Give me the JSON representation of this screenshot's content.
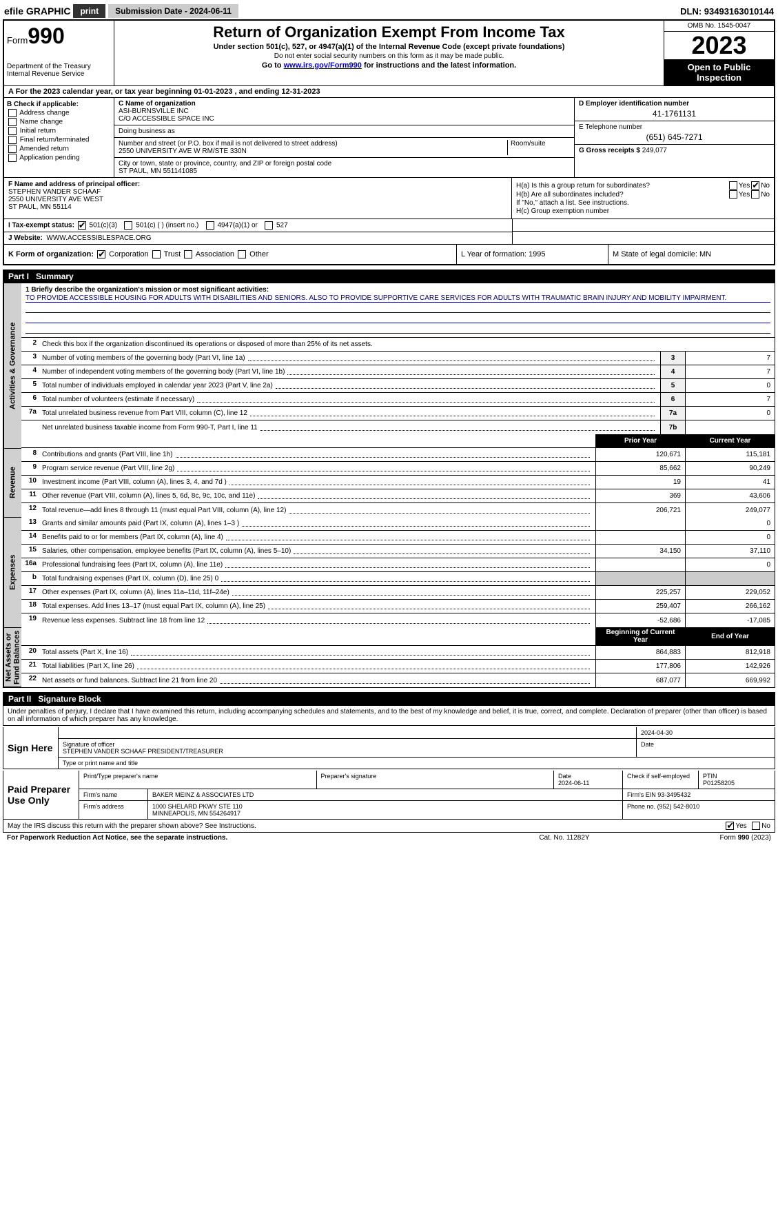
{
  "meta": {
    "efile": "efile GRAPHIC",
    "print": "print",
    "submission_label": "Submission Date - 2024-06-11",
    "dln": "DLN: 93493163010144"
  },
  "header": {
    "form_small": "Form",
    "form_big": "990",
    "dept": "Department of the Treasury\nInternal Revenue Service",
    "title": "Return of Organization Exempt From Income Tax",
    "sub1": "Under section 501(c), 527, or 4947(a)(1) of the Internal Revenue Code (except private foundations)",
    "sub2": "Do not enter social security numbers on this form as it may be made public.",
    "sub3_pre": "Go to ",
    "sub3_link": "www.irs.gov/Form990",
    "sub3_post": " for instructions and the latest information.",
    "omb": "OMB No. 1545-0047",
    "year": "2023",
    "inspect": "Open to Public Inspection"
  },
  "line_a": "A For the 2023 calendar year, or tax year beginning 01-01-2023   , and ending 12-31-2023",
  "col_b": {
    "title": "B Check if applicable:",
    "items": [
      "Address change",
      "Name change",
      "Initial return",
      "Final return/terminated",
      "Amended return",
      "Application pending"
    ]
  },
  "col_c": {
    "name_label": "C Name of organization",
    "name1": "ASI-BURNSVILLE INC",
    "name2": "C/O ACCESSIBLE SPACE INC",
    "dba_label": "Doing business as",
    "addr_label": "Number and street (or P.O. box if mail is not delivered to street address)",
    "addr": "2550 UNIVERSITY AVE W RM/STE 330N",
    "suite_label": "Room/suite",
    "city_label": "City or town, state or province, country, and ZIP or foreign postal code",
    "city": "ST PAUL, MN  551141085"
  },
  "col_de": {
    "d_label": "D Employer identification number",
    "d_val": "41-1761131",
    "e_label": "E Telephone number",
    "e_val": "(651) 645-7271",
    "g_label": "G Gross receipts $",
    "g_val": "249,077"
  },
  "col_f": {
    "label": "F Name and address of principal officer:",
    "l1": "STEPHEN VANDER SCHAAF",
    "l2": "2550 UNIVERSITY AVE WEST",
    "l3": "ST PAUL, MN  55114"
  },
  "col_h": {
    "ha": "H(a)  Is this a group return for subordinates?",
    "hb": "H(b)  Are all subordinates included?",
    "hb_note": "If \"No,\" attach a list. See instructions.",
    "hc": "H(c)  Group exemption number"
  },
  "row_i": {
    "label": "I   Tax-exempt status:",
    "o1": "501(c)(3)",
    "o2": "501(c) (  ) (insert no.)",
    "o3": "4947(a)(1) or",
    "o4": "527"
  },
  "row_j": {
    "label": "J   Website:",
    "val": "WWW.ACCESSIBLESPACE.ORG"
  },
  "row_k": "K Form of organization:",
  "row_k_opts": [
    "Corporation",
    "Trust",
    "Association",
    "Other"
  ],
  "row_l": "L Year of formation: 1995",
  "row_m": "M State of legal domicile: MN",
  "part1": {
    "name": "Part I",
    "title": "Summary"
  },
  "mission": {
    "label": "1   Briefly describe the organization's mission or most significant activities:",
    "text": "TO PROVIDE ACCESSIBLE HOUSING FOR ADULTS WITH DISABILITIES AND SENIORS. ALSO TO PROVIDE SUPPORTIVE CARE SERVICES FOR ADULTS WITH TRAUMATIC BRAIN INJURY AND MOBILITY IMPAIRMENT."
  },
  "line2": "Check this box      if the organization discontinued its operations or disposed of more than 25% of its net assets.",
  "gov_rows": [
    {
      "n": "3",
      "d": "Number of voting members of the governing body (Part VI, line 1a)",
      "k": "3",
      "v": "7"
    },
    {
      "n": "4",
      "d": "Number of independent voting members of the governing body (Part VI, line 1b)",
      "k": "4",
      "v": "7"
    },
    {
      "n": "5",
      "d": "Total number of individuals employed in calendar year 2023 (Part V, line 2a)",
      "k": "5",
      "v": "0"
    },
    {
      "n": "6",
      "d": "Total number of volunteers (estimate if necessary)",
      "k": "6",
      "v": "7"
    },
    {
      "n": "7a",
      "d": "Total unrelated business revenue from Part VIII, column (C), line 12",
      "k": "7a",
      "v": "0"
    },
    {
      "n": "",
      "d": "Net unrelated business taxable income from Form 990-T, Part I, line 11",
      "k": "7b",
      "v": ""
    }
  ],
  "col_headers": {
    "prior": "Prior Year",
    "current": "Current Year"
  },
  "rev_rows": [
    {
      "n": "8",
      "d": "Contributions and grants (Part VIII, line 1h)",
      "p": "120,671",
      "c": "115,181"
    },
    {
      "n": "9",
      "d": "Program service revenue (Part VIII, line 2g)",
      "p": "85,662",
      "c": "90,249"
    },
    {
      "n": "10",
      "d": "Investment income (Part VIII, column (A), lines 3, 4, and 7d )",
      "p": "19",
      "c": "41"
    },
    {
      "n": "11",
      "d": "Other revenue (Part VIII, column (A), lines 5, 6d, 8c, 9c, 10c, and 11e)",
      "p": "369",
      "c": "43,606"
    },
    {
      "n": "12",
      "d": "Total revenue—add lines 8 through 11 (must equal Part VIII, column (A), line 12)",
      "p": "206,721",
      "c": "249,077"
    }
  ],
  "exp_rows": [
    {
      "n": "13",
      "d": "Grants and similar amounts paid (Part IX, column (A), lines 1–3 )",
      "p": "",
      "c": "0"
    },
    {
      "n": "14",
      "d": "Benefits paid to or for members (Part IX, column (A), line 4)",
      "p": "",
      "c": "0"
    },
    {
      "n": "15",
      "d": "Salaries, other compensation, employee benefits (Part IX, column (A), lines 5–10)",
      "p": "34,150",
      "c": "37,110"
    },
    {
      "n": "16a",
      "d": "Professional fundraising fees (Part IX, column (A), line 11e)",
      "p": "",
      "c": "0"
    },
    {
      "n": "b",
      "d": "Total fundraising expenses (Part IX, column (D), line 25) 0",
      "p": "GRAY",
      "c": "GRAY"
    },
    {
      "n": "17",
      "d": "Other expenses (Part IX, column (A), lines 11a–11d, 11f–24e)",
      "p": "225,257",
      "c": "229,052"
    },
    {
      "n": "18",
      "d": "Total expenses. Add lines 13–17 (must equal Part IX, column (A), line 25)",
      "p": "259,407",
      "c": "266,162"
    },
    {
      "n": "19",
      "d": "Revenue less expenses. Subtract line 18 from line 12",
      "p": "-52,686",
      "c": "-17,085"
    }
  ],
  "net_headers": {
    "begin": "Beginning of Current Year",
    "end": "End of Year"
  },
  "net_rows": [
    {
      "n": "20",
      "d": "Total assets (Part X, line 16)",
      "p": "864,883",
      "c": "812,918"
    },
    {
      "n": "21",
      "d": "Total liabilities (Part X, line 26)",
      "p": "177,806",
      "c": "142,926"
    },
    {
      "n": "22",
      "d": "Net assets or fund balances. Subtract line 21 from line 20",
      "p": "687,077",
      "c": "669,992"
    }
  ],
  "part2": {
    "name": "Part II",
    "title": "Signature Block"
  },
  "sig_intro": "Under penalties of perjury, I declare that I have examined this return, including accompanying schedules and statements, and to the best of my knowledge and belief, it is true, correct, and complete. Declaration of preparer (other than officer) is based on all information of which preparer has any knowledge.",
  "sign_here": "Sign Here",
  "sig": {
    "date": "2024-04-30",
    "sig_label": "Signature of officer",
    "name": "STEPHEN VANDER SCHAAF PRESIDENT/TREASURER",
    "title_label": "Type or print name and title",
    "date_label": "Date"
  },
  "paid": {
    "label": "Paid Preparer Use Only",
    "h1": "Print/Type preparer's name",
    "h2": "Preparer's signature",
    "h3": "Date",
    "h4": "Check      if self-employed",
    "h5": "PTIN",
    "date": "2024-06-11",
    "ptin": "P01258205",
    "firm_label": "Firm's name",
    "firm": "BAKER MEINZ & ASSOCIATES LTD",
    "ein_label": "Firm's EIN",
    "ein": "93-3495432",
    "addr_label": "Firm's address",
    "addr1": "1000 SHELARD PKWY STE 110",
    "addr2": "MINNEAPOLIS, MN  554264917",
    "phone_label": "Phone no.",
    "phone": "(952) 542-8010"
  },
  "discuss": "May the IRS discuss this return with the preparer shown above? See Instructions.",
  "footer": {
    "f1": "For Paperwork Reduction Act Notice, see the separate instructions.",
    "f2": "Cat. No. 11282Y",
    "f3": "Form 990 (2023)"
  }
}
